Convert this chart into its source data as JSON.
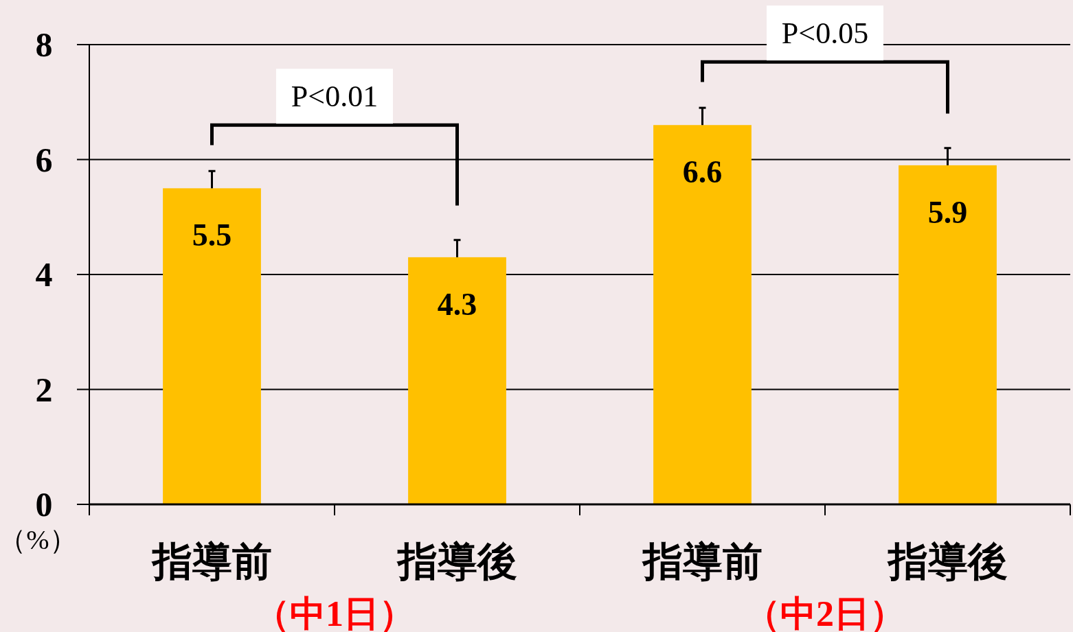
{
  "chart_data": {
    "type": "bar",
    "categories": [
      "指導前",
      "指導後",
      "指導前",
      "指導後"
    ],
    "values": [
      5.5,
      4.3,
      6.6,
      5.9
    ],
    "color": "#ffc000",
    "errors": [
      [
        5.5,
        5.8
      ],
      [
        4.3,
        4.6
      ],
      [
        6.6,
        6.9
      ],
      [
        5.9,
        6.2
      ]
    ],
    "ylim": [
      0,
      8
    ],
    "yticks": [
      0,
      2,
      4,
      6,
      8
    ],
    "grid": "y",
    "data_labels": true,
    "ylabel": "（%）",
    "annotations": [
      "P<0.01",
      "P<0.05",
      "（中1日）",
      "（中2日）"
    ]
  }
}
